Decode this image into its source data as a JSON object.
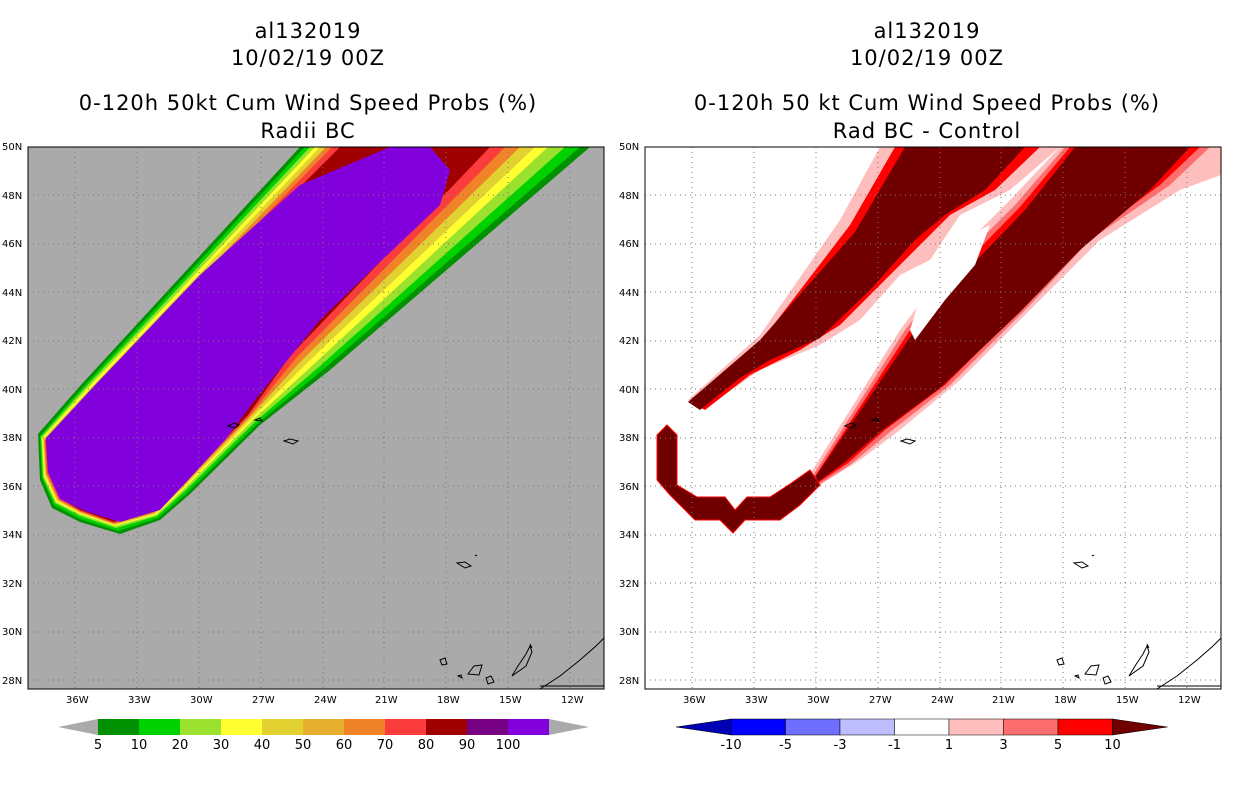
{
  "left_panel": {
    "storm_id": "al132019",
    "datetime": "10/02/19 00Z",
    "title": "0-120h 50kt Cum Wind Speed Probs (%)",
    "subtitle": "Radii BC",
    "colorbar": {
      "labels": [
        "5",
        "10",
        "20",
        "30",
        "40",
        "50",
        "60",
        "70",
        "80",
        "90",
        "100"
      ],
      "colors": [
        "#009100",
        "#00d200",
        "#9be12d",
        "#ffff32",
        "#e1d232",
        "#e6af2d",
        "#f08228",
        "#fa3c3c",
        "#a00000",
        "#780082",
        "#8200dc"
      ]
    }
  },
  "right_panel": {
    "storm_id": "al132019",
    "datetime": "10/02/19 00Z",
    "title": "0-120h 50 kt Cum Wind Speed Probs (%)",
    "subtitle": "Rad BC - Control",
    "colorbar": {
      "labels": [
        "-10",
        "-5",
        "-3",
        "-1",
        "1",
        "3",
        "5",
        "10"
      ],
      "colors": [
        "#0000b4",
        "#0000ff",
        "#6e6eff",
        "#bebeff",
        "#ffffff",
        "#ffbebe",
        "#ff6e6e",
        "#ff0000",
        "#700000"
      ]
    }
  },
  "axes": {
    "lat_labels": [
      "50N",
      "48N",
      "46N",
      "44N",
      "42N",
      "40N",
      "38N",
      "36N",
      "34N",
      "32N",
      "30N",
      "28N"
    ],
    "lon_labels": [
      "36W",
      "33W",
      "30W",
      "27W",
      "24W",
      "21W",
      "18W",
      "15W",
      "12W"
    ]
  },
  "colors": {
    "land_ocean_bg": "#aaaaaa",
    "purple": "#8200dc",
    "dark_red": "#700000"
  }
}
